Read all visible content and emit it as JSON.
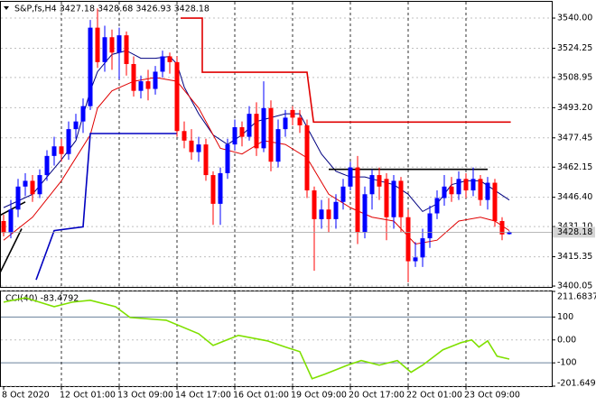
{
  "chart_data": {
    "type": "candlestick",
    "title": "S&P,fs,H4 3427.18 3428.68 3426.93 3428.18",
    "categories": [
      "8 Oct 2020",
      null,
      null,
      null,
      null,
      null,
      null,
      null,
      "12 Oct 01:00",
      null,
      null,
      null,
      null,
      null,
      null,
      null,
      "13 Oct 09:00",
      null,
      null,
      null,
      null,
      null,
      null,
      null,
      "14 Oct 17:00",
      null,
      null,
      null,
      null,
      null,
      null,
      null,
      "16 Oct 01:00",
      null,
      null,
      null,
      null,
      null,
      null,
      null,
      "19 Oct 09:00",
      null,
      null,
      null,
      null,
      null,
      null,
      null,
      "20 Oct 17:00",
      null,
      null,
      null,
      null,
      null,
      null,
      null,
      "22 Oct 01:00",
      null,
      null,
      null,
      null,
      null,
      null,
      null,
      "23 Oct 09:00",
      null,
      null,
      null,
      null,
      null,
      null
    ],
    "open": [
      3434,
      3427.8,
      3440,
      3452,
      3455,
      3448,
      3458,
      3468,
      3473,
      3469,
      3482,
      3486,
      3494,
      3535,
      3517,
      3530,
      3522,
      3531,
      3516,
      3502,
      3507,
      3503,
      3512,
      3520,
      3517,
      3481,
      3476,
      3470,
      3474,
      3458,
      3443,
      3459,
      3474,
      3483,
      3478,
      3490,
      3472,
      3493,
      3465,
      3482,
      3492,
      3488,
      3484,
      3450,
      3435,
      3440,
      3435,
      3444,
      3452,
      3462,
      3428,
      3448,
      3458,
      3456,
      3436,
      3455,
      3436,
      3413,
      3415,
      3425,
      3438,
      3446,
      3452,
      3448,
      3456,
      3450,
      3456,
      3445,
      3454,
      3434,
      3427.18
    ],
    "high": [
      3437.3,
      3445,
      3456,
      3459,
      3458,
      3461,
      3471,
      3478,
      3477,
      3486,
      3490,
      3498,
      3539,
      3545,
      3536,
      3534,
      3535,
      3533,
      3520,
      3510,
      3513,
      3515,
      3523,
      3522,
      3520,
      3486,
      3482,
      3478,
      3477,
      3460,
      3462,
      3477,
      3487,
      3486,
      3494,
      3496,
      3507,
      3497,
      3487,
      3492,
      3494,
      3492,
      3487,
      3452,
      3445,
      3446,
      3448,
      3456,
      3465,
      3468,
      3452,
      3461,
      3462,
      3459,
      3458,
      3457,
      3440,
      3423,
      3430,
      3442,
      3450,
      3458,
      3457,
      3460,
      3459,
      3462,
      3458,
      3457,
      3456,
      3436,
      3428.68
    ],
    "low": [
      3426,
      3425,
      3436,
      3447,
      3444,
      3446,
      3455,
      3463,
      3465,
      3466,
      3477,
      3480,
      3492,
      3514,
      3512,
      3513,
      3508,
      3510,
      3499,
      3498,
      3497,
      3500,
      3509,
      3511,
      3478,
      3472,
      3466,
      3465,
      3455,
      3432,
      3432,
      3456,
      3471,
      3473,
      3476,
      3468,
      3470,
      3460,
      3462,
      3478,
      3484,
      3480,
      3446,
      3408,
      3430,
      3428,
      3430,
      3440,
      3450,
      3422,
      3425,
      3440,
      3445,
      3424,
      3430,
      3428,
      3402,
      3410,
      3410,
      3420,
      3435,
      3442,
      3444,
      3445,
      3446,
      3447,
      3442,
      3440,
      3431,
      3424,
      3426.93
    ],
    "close": [
      3427.8,
      3440,
      3452,
      3455,
      3448,
      3458,
      3468,
      3473,
      3469,
      3482,
      3486,
      3494,
      3535,
      3517,
      3530,
      3522,
      3531,
      3516,
      3502,
      3507,
      3503,
      3512,
      3520,
      3517,
      3481,
      3476,
      3470,
      3474,
      3458,
      3443,
      3459,
      3474,
      3483,
      3478,
      3490,
      3472,
      3493,
      3465,
      3482,
      3488,
      3488,
      3484,
      3450,
      3435,
      3440,
      3435,
      3444,
      3452,
      3462,
      3428,
      3448,
      3458,
      3452,
      3436,
      3455,
      3436,
      3413,
      3415,
      3425,
      3438,
      3446,
      3452,
      3448,
      3456,
      3450,
      3456,
      3445,
      3454,
      3434,
      3427,
      3428.18
    ],
    "up_color": "#0000ff",
    "down_color": "#ff0000",
    "ylim": [
      3399.6,
      3548.5
    ],
    "yticks": [
      {
        "value": 3540,
        "label": "3540.00"
      },
      {
        "value": 3524.25,
        "label": "3524.25"
      },
      {
        "value": 3508.95,
        "label": "3508.95"
      },
      {
        "value": 3493.2,
        "label": "3493.20"
      },
      {
        "value": 3477.45,
        "label": "3477.45"
      },
      {
        "value": 3462.15,
        "label": "3462.15"
      },
      {
        "value": 3446.4,
        "label": "3446.40"
      },
      {
        "value": 3431.1,
        "label": "3431.10"
      },
      {
        "value": 3415.35,
        "label": "3415.35"
      },
      {
        "value": 3400.05,
        "label": "3400.05"
      }
    ],
    "grid": true,
    "overlays": [
      {
        "color": "#000080",
        "x": [
          0,
          4,
          8,
          10,
          12,
          13,
          15,
          17,
          19,
          21,
          23,
          24,
          25,
          27,
          29,
          31,
          33,
          35,
          37,
          39,
          41,
          42,
          44,
          46,
          48,
          50,
          52,
          54,
          56,
          58,
          60,
          62,
          64,
          66,
          68,
          70
        ],
        "values": [
          3441,
          3448,
          3466,
          3476,
          3502,
          3512,
          3521,
          3523,
          3519,
          3519,
          3520,
          3516,
          3504,
          3490,
          3479,
          3474,
          3479,
          3486,
          3488,
          3490,
          3490,
          3483,
          3469,
          3460,
          3457,
          3457,
          3455,
          3453,
          3448,
          3439,
          3443,
          3453,
          3455,
          3455,
          3450,
          3445
        ]
      },
      {
        "color": "#e00000",
        "x": [
          0,
          4,
          8,
          12,
          13,
          15,
          18,
          21,
          24,
          27,
          30,
          33,
          36,
          39,
          42,
          45,
          48,
          51,
          54,
          57,
          60,
          63,
          66,
          68,
          70
        ],
        "values": [
          3424,
          3436,
          3455,
          3479,
          3493,
          3502,
          3507,
          3509,
          3507,
          3493,
          3472,
          3469,
          3476,
          3474,
          3467,
          3448,
          3441,
          3436,
          3434,
          3422,
          3424,
          3434,
          3436,
          3434,
          3429
        ]
      },
      {
        "color": "#e00000",
        "x": [
          24.5,
          27.5,
          27.5,
          42,
          42.9,
          70.2
        ],
        "values": [
          3540,
          3540,
          3511.7,
          3511.7,
          3485.7,
          3485.7
        ]
      },
      {
        "color": "#0000c0",
        "x": [
          4.5,
          7,
          11,
          12,
          24
        ],
        "values": [
          3403.3,
          3429,
          3431,
          3479.7,
          3479.7
        ]
      },
      {
        "color": "#000000",
        "x": [
          45,
          67
        ],
        "values": [
          3461,
          3461
        ]
      },
      {
        "color": "#000000",
        "x": [
          -0.5,
          3
        ],
        "values": [
          3437,
          3444
        ]
      },
      {
        "color": "#000000",
        "x": [
          -0.5,
          2.5
        ],
        "values": [
          3407,
          3430
        ]
      }
    ],
    "indicator": {
      "title": "CCI(40) -83.4792",
      "color": "#7fe000",
      "level_color": "#6a819c",
      "levels": [
        100,
        -100
      ],
      "ylim": [
        -201.649,
        211.6837
      ],
      "yticks": [
        211.6837,
        100,
        {
          "value": 0,
          "label": "0.00"
        },
        -100,
        -201.649
      ],
      "x": [
        0,
        3,
        7,
        9.5,
        12,
        15.5,
        17.5,
        22.5,
        27,
        29,
        32.5,
        36.5,
        39,
        41,
        42.7,
        44.5,
        47.6,
        49.5,
        52,
        54.5,
        56.4,
        58,
        60.8,
        63.3,
        64.8,
        65.8,
        67,
        68.3,
        70
      ],
      "values": [
        165,
        184,
        145,
        165,
        173,
        145,
        98,
        86,
        27,
        -24,
        20,
        -4,
        -31,
        -51,
        -169,
        -149,
        -110,
        -90,
        -110,
        -90,
        -141,
        -110,
        -43,
        -12,
        0,
        -31,
        -4,
        -71,
        -83.4792
      ]
    }
  }
}
